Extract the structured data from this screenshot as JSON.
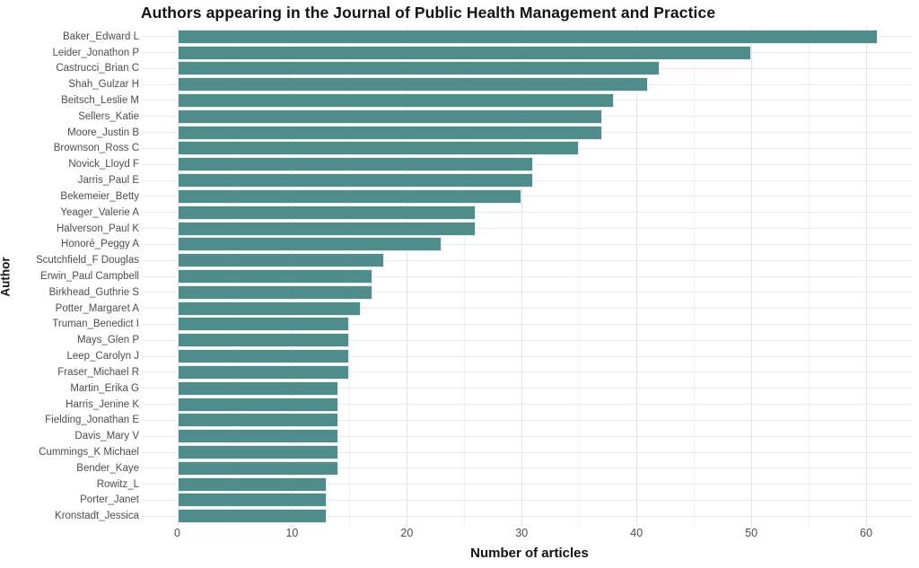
{
  "chart_data": {
    "type": "bar",
    "orientation": "horizontal",
    "title": "Authors appearing in the Journal of Public Health Management and Practice",
    "xlabel": "Number of articles",
    "ylabel": "Author",
    "categories": [
      "Baker_Edward L",
      "Leider_Jonathon P",
      "Castrucci_Brian C",
      "Shah_Gulzar H",
      "Beitsch_Leslie M",
      "Sellers_Katie",
      "Moore_Justin B",
      "Brownson_Ross C",
      "Novick_Lloyd F",
      "Jarris_Paul E",
      "Bekemeier_Betty",
      "Yeager_Valerie A",
      "Halverson_Paul K",
      "Honoré_Peggy A",
      "Scutchfield_F Douglas",
      "Erwin_Paul Campbell",
      "Birkhead_Guthrie S",
      "Potter_Margaret A",
      "Truman_Benedict I",
      "Mays_Glen P",
      "Leep_Carolyn J",
      "Fraser_Michael R",
      "Martin_Erika G",
      "Harris_Jenine K",
      "Fielding_Jonathan E",
      "Davis_Mary V",
      "Cummings_K Michael",
      "Bender_Kaye",
      "Rowitz_L",
      "Porter_Janet",
      "Kronstadt_Jessica"
    ],
    "values": [
      61,
      50,
      42,
      41,
      38,
      37,
      37,
      35,
      31,
      31,
      30,
      26,
      26,
      23,
      18,
      17,
      17,
      16,
      15,
      15,
      15,
      15,
      14,
      14,
      14,
      14,
      14,
      14,
      13,
      13,
      13
    ],
    "xticks": [
      0,
      10,
      20,
      30,
      40,
      50,
      60
    ],
    "x_minor_ticks": [
      5,
      15,
      25,
      35,
      45,
      55
    ],
    "xlim": [
      0,
      64
    ],
    "grid": "on",
    "legend": "none",
    "bar_color": "#4f8c8c",
    "background_color": "#ffffff",
    "grid_major_color": "#e2e2e2",
    "grid_minor_color": "#f1f1f1",
    "axis_text_color": "#4d4d4d",
    "title_color": "#141414"
  }
}
